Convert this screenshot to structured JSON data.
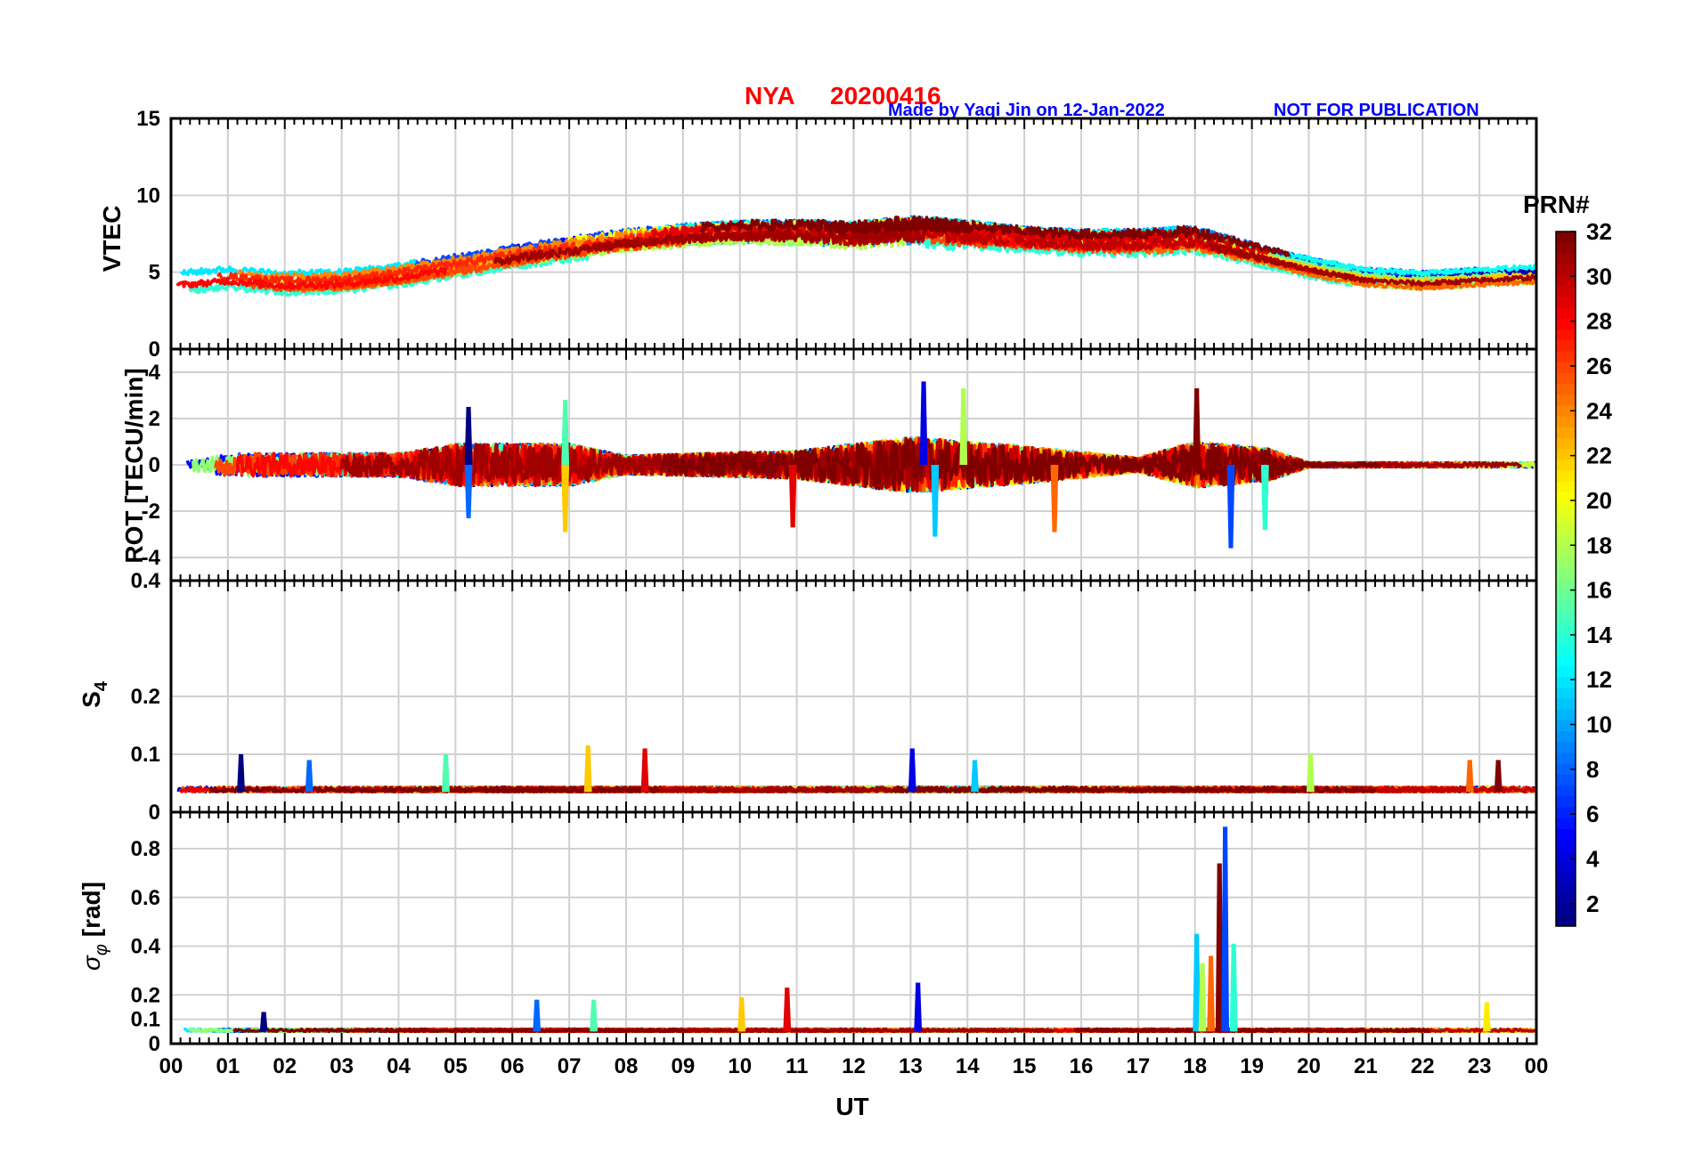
{
  "chart_data": {
    "type": "line",
    "header": {
      "station": "NYA",
      "date": "20200416",
      "credit": "Made by Yaqi Jin on 12-Jan-2022",
      "notice": "NOT FOR PUBLICATION"
    },
    "xlabel": "UT",
    "x_ticks": [
      "00",
      "01",
      "02",
      "03",
      "04",
      "05",
      "06",
      "07",
      "08",
      "09",
      "10",
      "11",
      "12",
      "13",
      "14",
      "15",
      "16",
      "17",
      "18",
      "19",
      "20",
      "21",
      "22",
      "23",
      "00"
    ],
    "xlim_hours": [
      0,
      24
    ],
    "grid": true,
    "colorbar": {
      "title": "PRN#",
      "colormap": "jet",
      "range": [
        1,
        32
      ],
      "ticks": [
        "2",
        "4",
        "6",
        "8",
        "10",
        "12",
        "14",
        "16",
        "18",
        "20",
        "22",
        "24",
        "26",
        "28",
        "30",
        "32"
      ],
      "tick_values": [
        2,
        4,
        6,
        8,
        10,
        12,
        14,
        16,
        18,
        20,
        22,
        24,
        26,
        28,
        30,
        32
      ],
      "placement": "right"
    },
    "panels": [
      {
        "id": "vtec",
        "ylabel": "VTEC",
        "ylim": [
          0,
          15
        ],
        "yticks": [
          0,
          5,
          10,
          15
        ],
        "ytick_labels": [
          "0",
          "5",
          "10",
          "15"
        ],
        "profile": [
          [
            0,
            4.3
          ],
          [
            1,
            4.6
          ],
          [
            2,
            4.3
          ],
          [
            3,
            4.4
          ],
          [
            4,
            4.8
          ],
          [
            5,
            5.4
          ],
          [
            6,
            6.0
          ],
          [
            7,
            6.5
          ],
          [
            8,
            7.0
          ],
          [
            9,
            7.3
          ],
          [
            10,
            7.5
          ],
          [
            11,
            7.5
          ],
          [
            12,
            7.3
          ],
          [
            13,
            7.6
          ],
          [
            14,
            7.4
          ],
          [
            15,
            7.1
          ],
          [
            16,
            6.9
          ],
          [
            17,
            6.9
          ],
          [
            18,
            7.1
          ],
          [
            19,
            6.2
          ],
          [
            20,
            5.3
          ],
          [
            21,
            4.6
          ],
          [
            22,
            4.4
          ],
          [
            23,
            4.6
          ],
          [
            24,
            4.8
          ]
        ],
        "noise": 0.6,
        "noise_pattern": [
          [
            0,
            0.4
          ],
          [
            10,
            0.6
          ],
          [
            13,
            1.0
          ],
          [
            15,
            0.6
          ],
          [
            18,
            0.7
          ],
          [
            19.5,
            0.3
          ],
          [
            24,
            0.3
          ]
        ]
      },
      {
        "id": "rot",
        "ylabel": "ROT [TECU/min]",
        "ylim": [
          -5,
          5
        ],
        "yticks": [
          -4,
          -2,
          0,
          2,
          4
        ],
        "ytick_labels": [
          "-4",
          "-2",
          "0",
          "2",
          "4"
        ],
        "profile": [
          [
            0,
            0
          ],
          [
            24,
            0
          ]
        ],
        "noise": 0.3,
        "noise_pattern": [
          [
            0,
            0.1
          ],
          [
            1,
            0.5
          ],
          [
            4,
            0.5
          ],
          [
            5,
            0.9
          ],
          [
            7,
            0.9
          ],
          [
            8,
            0.4
          ],
          [
            11,
            0.6
          ],
          [
            13,
            1.2
          ],
          [
            15,
            0.8
          ],
          [
            17,
            0.3
          ],
          [
            18,
            1.0
          ],
          [
            19.3,
            0.7
          ],
          [
            20,
            0.1
          ],
          [
            24,
            0.1
          ]
        ],
        "spikes": [
          [
            5.2,
            2.5
          ],
          [
            5.2,
            -2.3
          ],
          [
            6.9,
            2.8
          ],
          [
            6.9,
            -2.9
          ],
          [
            10.9,
            -2.7
          ],
          [
            13.2,
            3.6
          ],
          [
            13.4,
            -3.1
          ],
          [
            13.9,
            3.3
          ],
          [
            15.5,
            -2.9
          ],
          [
            18.0,
            3.3
          ],
          [
            18.6,
            -3.6
          ],
          [
            19.2,
            -2.8
          ]
        ]
      },
      {
        "id": "s4",
        "ylabel": "S4",
        "ylim": [
          0,
          0.4
        ],
        "yticks": [
          0,
          0.1,
          0.2,
          0.4
        ],
        "ytick_labels": [
          "0",
          "0.1",
          "0.2",
          "0.4"
        ],
        "profile": [
          [
            0,
            0.035
          ],
          [
            24,
            0.035
          ]
        ],
        "noise": 0.012,
        "spikes": [
          [
            1.2,
            0.1
          ],
          [
            2.4,
            0.09
          ],
          [
            4.8,
            0.1
          ],
          [
            7.3,
            0.115
          ],
          [
            8.3,
            0.11
          ],
          [
            13.0,
            0.11
          ],
          [
            14.1,
            0.09
          ],
          [
            20.0,
            0.1
          ],
          [
            22.8,
            0.09
          ],
          [
            23.3,
            0.09
          ]
        ]
      },
      {
        "id": "sigma_phi",
        "ylabel": "σφ [rad]",
        "ylim": [
          0,
          0.95
        ],
        "yticks": [
          0,
          0.1,
          0.2,
          0.4,
          0.6,
          0.8
        ],
        "ytick_labels": [
          "0",
          "0.1",
          "0.2",
          "0.4",
          "0.6",
          "0.8"
        ],
        "profile": [
          [
            0,
            0.05
          ],
          [
            24,
            0.05
          ]
        ],
        "noise": 0.015,
        "spikes": [
          [
            1.6,
            0.13
          ],
          [
            6.4,
            0.18
          ],
          [
            7.4,
            0.18
          ],
          [
            10.0,
            0.19
          ],
          [
            10.8,
            0.23
          ],
          [
            13.1,
            0.25
          ],
          [
            18.0,
            0.45
          ],
          [
            18.1,
            0.33
          ],
          [
            18.25,
            0.36
          ],
          [
            18.4,
            0.74
          ],
          [
            18.5,
            0.89
          ],
          [
            18.65,
            0.41
          ],
          [
            23.1,
            0.17
          ]
        ]
      }
    ]
  }
}
